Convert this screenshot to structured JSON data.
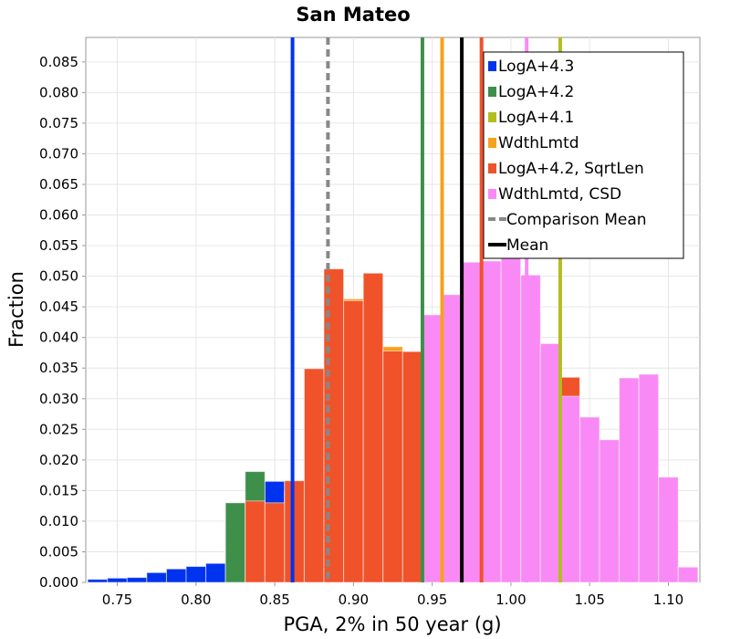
{
  "chart_data": {
    "type": "bar",
    "title": "San Mateo",
    "xlabel": "PGA, 2% in 50 year (g)",
    "ylabel": "Fraction",
    "xlim": [
      0.73,
      1.12
    ],
    "ylim": [
      0.0,
      0.089
    ],
    "xticks": [
      "0.75",
      "0.80",
      "0.85",
      "0.90",
      "0.95",
      "1.00",
      "1.05",
      "1.10"
    ],
    "xtick_values": [
      0.75,
      0.8,
      0.85,
      0.9,
      0.95,
      1.0,
      1.05,
      1.1
    ],
    "yticks": [
      "0.000",
      "0.005",
      "0.010",
      "0.015",
      "0.020",
      "0.025",
      "0.030",
      "0.035",
      "0.040",
      "0.045",
      "0.050",
      "0.055",
      "0.060",
      "0.065",
      "0.070",
      "0.075",
      "0.080",
      "0.085"
    ],
    "ytick_values": [
      0.0,
      0.005,
      0.01,
      0.015,
      0.02,
      0.025,
      0.03,
      0.035,
      0.04,
      0.045,
      0.05,
      0.055,
      0.06,
      0.065,
      0.07,
      0.075,
      0.08,
      0.085
    ],
    "grid": true,
    "bin_width": 0.0125,
    "legend_position": "top-right",
    "series": [
      {
        "name": "LogA+4.3",
        "color": "#0033ee",
        "x": [
          0.7375,
          0.75,
          0.7625,
          0.775,
          0.7875,
          0.8,
          0.8125,
          0.825,
          0.8375,
          0.85,
          0.8625,
          0.875,
          0.8875,
          0.9,
          0.9125,
          0.925,
          0.9375,
          0.95,
          0.9625,
          0.975
        ],
        "values": [
          0.0005,
          0.0007,
          0.0008,
          0.0016,
          0.0022,
          0.0026,
          0.0031,
          0.0102,
          0.0122,
          0.0165,
          0.0165,
          0.0112,
          0.0082,
          0.0098,
          0.0145,
          0.011,
          0.0085,
          0.0058,
          0.0035,
          0.0023
        ]
      },
      {
        "name": "LogA+4.2",
        "color": "#3d8f4a",
        "x": [
          0.825,
          0.8375,
          0.85,
          0.8625,
          0.875,
          0.8875,
          0.9,
          0.9125,
          0.925,
          0.9375,
          0.95,
          0.9625,
          0.975,
          0.9875,
          1.0,
          1.0125,
          1.025,
          1.0375
        ],
        "values": [
          0.013,
          0.0181,
          0.012,
          0.0148,
          0.0134,
          0.0248,
          0.0262,
          0.031,
          0.0285,
          0.0275,
          0.025,
          0.02,
          0.0135,
          0.015,
          0.0155,
          0.0062,
          0.0035,
          0.0025
        ]
      },
      {
        "name": "LogA+4.1",
        "color": "#b3bd1e",
        "x": [
          0.9875,
          1.0,
          1.0125,
          1.025,
          1.0375,
          1.05,
          1.0625,
          1.075,
          1.0875,
          1.1,
          1.1125
        ],
        "values": [
          0.013,
          0.019,
          0.0238,
          0.0215,
          0.0198,
          0.0058,
          0.008,
          0.015,
          0.0145,
          0.0022,
          0.0005
        ]
      },
      {
        "name": "WdthLmtd",
        "color": "#f7a21b",
        "x": [
          0.8625,
          0.875,
          0.8875,
          0.9,
          0.9125,
          0.925,
          0.9375,
          0.95,
          0.9625,
          0.975,
          0.9875,
          1.0,
          1.0125,
          1.025,
          1.0375
        ],
        "values": [
          0.0148,
          0.0157,
          0.0333,
          0.0463,
          0.0465,
          0.0385,
          0.024,
          0.021,
          0.0135,
          0.0165,
          0.0157,
          0.019,
          0.0215,
          0.0198,
          0.0068
        ]
      },
      {
        "name": "LogA+4.2, SqrtLen",
        "color": "#f0522a",
        "x": [
          0.8375,
          0.85,
          0.8625,
          0.875,
          0.8875,
          0.9,
          0.9125,
          0.925,
          0.9375,
          0.95,
          0.9625,
          0.975,
          0.9875,
          1.0,
          1.0125,
          1.025,
          1.0375,
          1.05,
          1.0625,
          1.075,
          1.0875,
          1.1
        ],
        "values": [
          0.0133,
          0.013,
          0.0166,
          0.0349,
          0.0512,
          0.046,
          0.0505,
          0.0378,
          0.0377,
          0.0313,
          0.037,
          0.0345,
          0.047,
          0.0495,
          0.0442,
          0.0302,
          0.0335,
          0.0223,
          0.0138,
          0.0085,
          0.0045,
          0.0024
        ]
      },
      {
        "name": "WdthLmtd, CSD",
        "color": "#f98af5",
        "x": [
          0.95,
          0.9625,
          0.975,
          0.9875,
          1.0,
          1.0125,
          1.025,
          1.0375,
          1.05,
          1.0625,
          1.075,
          1.0875,
          1.1,
          1.1125
        ],
        "values": [
          0.0437,
          0.047,
          0.0523,
          0.0525,
          0.0588,
          0.0502,
          0.039,
          0.0304,
          0.027,
          0.0233,
          0.0334,
          0.034,
          0.0172,
          0.0025
        ]
      }
    ],
    "vlines": [
      {
        "x": 0.8613,
        "color": "#0033ee",
        "style": "solid",
        "width": 4
      },
      {
        "x": 0.8838,
        "color": "#888888",
        "style": "dashed",
        "width": 4
      },
      {
        "x": 0.9438,
        "color": "#3d8f4a",
        "style": "solid",
        "width": 4
      },
      {
        "x": 0.9563,
        "color": "#f7a21b",
        "style": "solid",
        "width": 4
      },
      {
        "x": 0.9688,
        "color": "#000000",
        "style": "solid",
        "width": 4
      },
      {
        "x": 0.9813,
        "color": "#f0522a",
        "style": "solid",
        "width": 4
      },
      {
        "x": 1.01,
        "color": "#f98af5",
        "style": "solid",
        "width": 4
      },
      {
        "x": 1.0313,
        "color": "#b3bd1e",
        "style": "solid",
        "width": 4
      }
    ],
    "legend": [
      {
        "label": "LogA+4.3",
        "color": "#0033ee",
        "kind": "box"
      },
      {
        "label": "LogA+4.2",
        "color": "#3d8f4a",
        "kind": "box"
      },
      {
        "label": "LogA+4.1",
        "color": "#b3bd1e",
        "kind": "box"
      },
      {
        "label": "WdthLmtd",
        "color": "#f7a21b",
        "kind": "box"
      },
      {
        "label": "LogA+4.2, SqrtLen",
        "color": "#f0522a",
        "kind": "box"
      },
      {
        "label": "WdthLmtd, CSD",
        "color": "#f98af5",
        "kind": "box"
      },
      {
        "label": "Comparison Mean",
        "color": "#888888",
        "kind": "dashed"
      },
      {
        "label": "Mean",
        "color": "#000000",
        "kind": "line"
      }
    ]
  }
}
